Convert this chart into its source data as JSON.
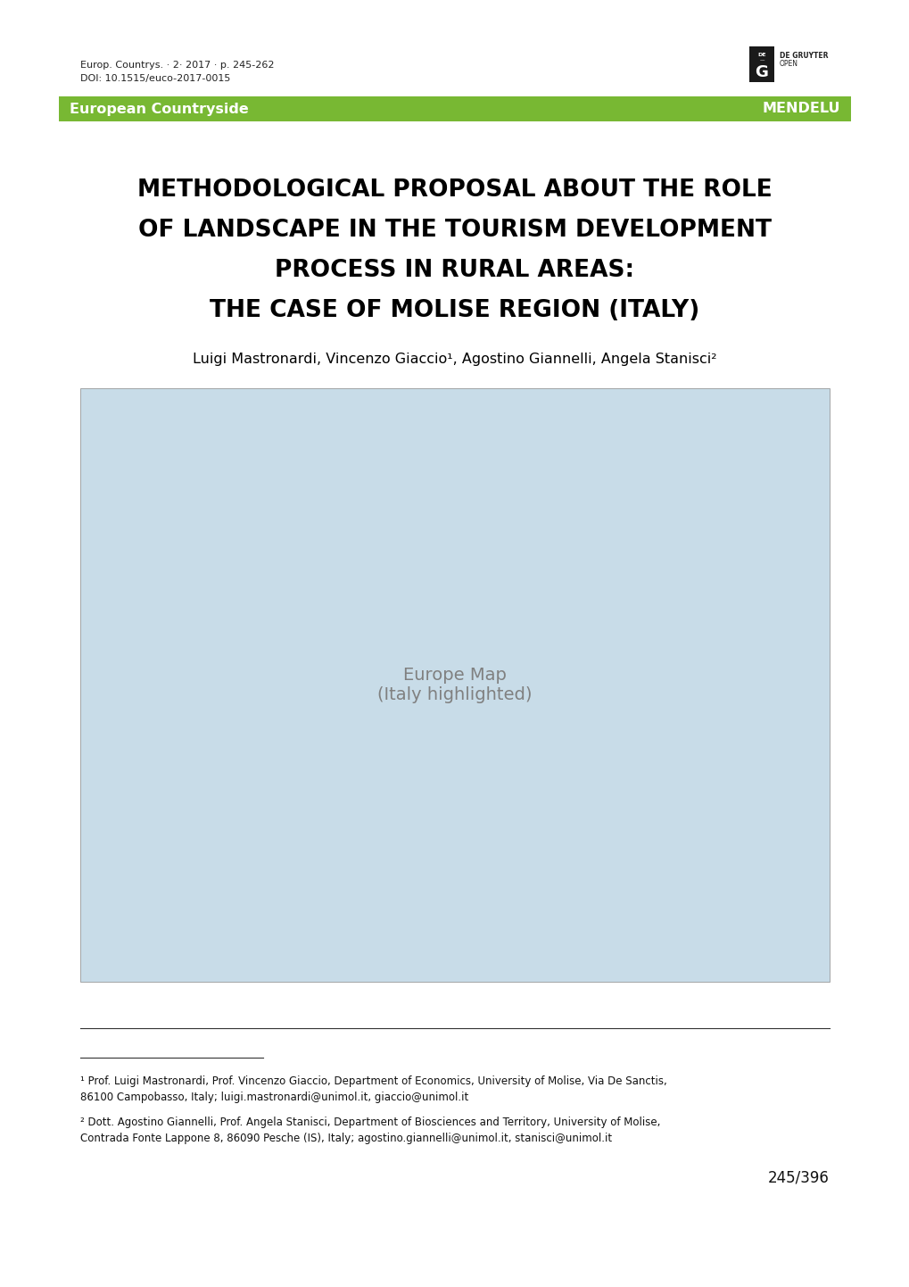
{
  "page_width": 10.2,
  "page_height": 14.42,
  "bg_color": "#ffffff",
  "header_text_line1": "Europ. Countrys. · 2· 2017 · p. 245-262",
  "header_text_line2": "DOI: 10.1515/euco-2017-0015",
  "green_bar_color": "#78b833",
  "green_bar_text_left": "European Countryside",
  "green_bar_text_right": "MENDELU",
  "title_line1": "METHODOLOGICAL PROPOSAL ABOUT THE ROLE",
  "title_line2": "OF LANDSCAPE IN THE TOURISM DEVELOPMENT",
  "title_line3": "PROCESS IN RURAL AREAS:",
  "title_line4": "THE CASE OF MOLISE REGION (ITALY)",
  "authors": "Luigi Mastronardi, Vincenzo Giaccio¹, Agostino Giannelli, Angela Stanisci²",
  "footnote1": "¹ Prof. Luigi Mastronardi, Prof. Vincenzo Giaccio, Department of Economics, University of Molise, Via De Sanctis, 86100 Campobasso, Italy; luigi.mastronardi@unimol.it, giaccio@unimol.it",
  "footnote2": "² Dott. Agostino Giannelli, Prof. Angela Stanisci, Department of Biosciences and Territory, University of Molise, Contrada Fonte Lappone 8, 86090 Pesche (IS), Italy; agostino.giannelli@unimol.it, stanisci@unimol.it",
  "page_number": "245/396",
  "map_bg_color": "#c8dce8",
  "land_color": "#f5f0d8",
  "italy_color": "#3ab520",
  "map_border_color": "#888888"
}
